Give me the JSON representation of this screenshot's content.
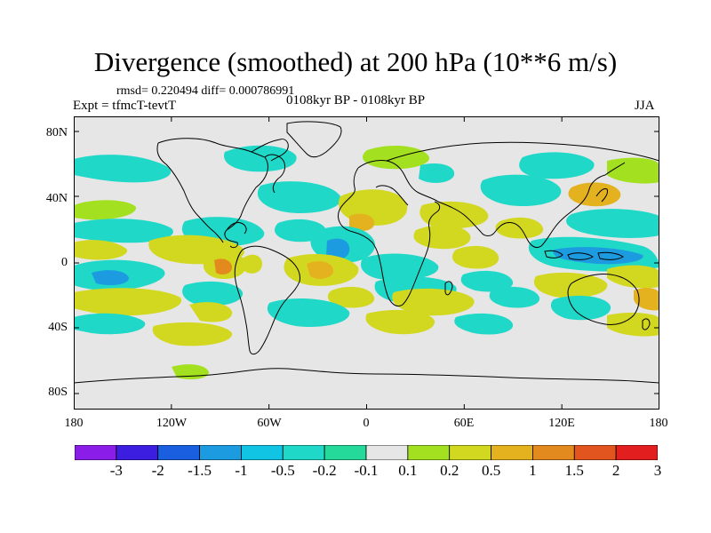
{
  "title": "Divergence (smoothed) at 200 hPa (10**6 m/s)",
  "stats": "rmsd= 0.220494 diff= 0.000786991",
  "experiment": "Expt = tfmcT-tevtT",
  "period": "0108kyr BP - 0108kyr BP",
  "season": "JJA",
  "lat_labels": [
    "80N",
    "40N",
    "0",
    "40S",
    "80S"
  ],
  "lon_labels": [
    "180",
    "120W",
    "60W",
    "0",
    "60E",
    "120E",
    "180"
  ],
  "colorbar": {
    "labels": [
      "-3",
      "-2",
      "-1.5",
      "-1",
      "-0.5",
      "-0.2",
      "-0.1",
      "0.1",
      "0.2",
      "0.5",
      "1",
      "1.5",
      "2",
      "3"
    ],
    "colors": [
      "#8a1ee8",
      "#3b1ee0",
      "#1a5fe0",
      "#1c9be0",
      "#12c4e3",
      "#20d8c8",
      "#24d99a",
      "#e6e6e6",
      "#a3e020",
      "#d2d820",
      "#e3b21e",
      "#e38a1e",
      "#e3551e",
      "#e31e1e"
    ]
  },
  "map_colors": {
    "background": "#e6e6e6",
    "neg_weak": "#24d99a",
    "neg_mid": "#20d8c8",
    "neg_strong": "#12c4e3",
    "neg_max": "#1c9be0",
    "pos_weak": "#a3e020",
    "pos_mid": "#d2d820",
    "pos_strong": "#e3b21e",
    "pos_max": "#e38a1e"
  }
}
